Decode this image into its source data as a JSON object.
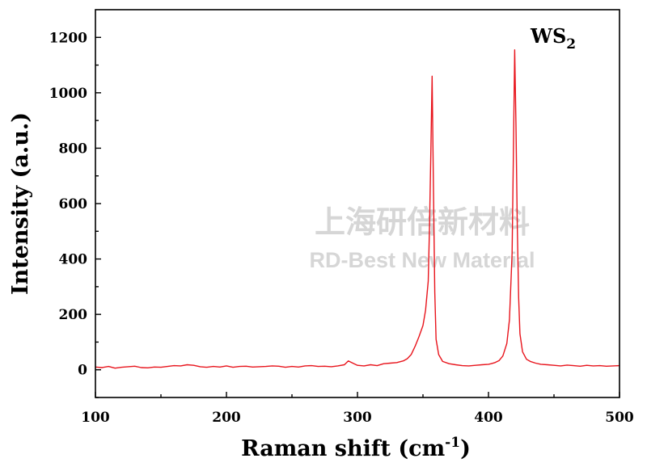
{
  "chart_data": {
    "type": "line",
    "title": "",
    "xlabel": "Raman shift (cm",
    "xlabel_superscript": "-1",
    "xlabel_suffix": ")",
    "ylabel": "Intensity (a.u.)",
    "annotation": {
      "main": "WS",
      "subscript": "2"
    },
    "xlim": [
      100,
      500
    ],
    "ylim": [
      -100,
      1300
    ],
    "x_ticks": [
      100,
      200,
      300,
      400,
      500
    ],
    "y_ticks": [
      0,
      200,
      400,
      600,
      800,
      1000,
      1200
    ],
    "grid": false,
    "series": [
      {
        "color": "#e8141c",
        "x": [
          100,
          105,
          110,
          115,
          120,
          125,
          130,
          135,
          140,
          145,
          150,
          155,
          160,
          165,
          170,
          175,
          180,
          185,
          190,
          195,
          200,
          205,
          210,
          215,
          220,
          225,
          230,
          235,
          240,
          245,
          250,
          255,
          260,
          265,
          270,
          275,
          280,
          285,
          290,
          293,
          296,
          300,
          305,
          310,
          315,
          320,
          325,
          330,
          335,
          338,
          341,
          344,
          347,
          350,
          352,
          354,
          355,
          356,
          357,
          358,
          359,
          360,
          362,
          365,
          370,
          375,
          380,
          385,
          390,
          395,
          400,
          402,
          405,
          408,
          411,
          414,
          416,
          418,
          419,
          420,
          421,
          422,
          423,
          424,
          426,
          429,
          432,
          436,
          440,
          445,
          450,
          455,
          460,
          465,
          470,
          475,
          480,
          485,
          490,
          495,
          500
        ],
        "y": [
          10,
          8,
          12,
          6,
          9,
          11,
          13,
          8,
          7,
          10,
          9,
          12,
          15,
          14,
          18,
          16,
          11,
          9,
          12,
          10,
          14,
          9,
          12,
          13,
          10,
          11,
          12,
          14,
          13,
          9,
          12,
          10,
          14,
          15,
          12,
          13,
          11,
          14,
          18,
          32,
          25,
          16,
          14,
          18,
          15,
          22,
          24,
          26,
          32,
          40,
          55,
          85,
          120,
          160,
          215,
          320,
          520,
          780,
          1060,
          640,
          280,
          110,
          55,
          30,
          22,
          18,
          15,
          14,
          16,
          18,
          20,
          22,
          26,
          33,
          50,
          95,
          180,
          420,
          780,
          1155,
          880,
          520,
          260,
          130,
          65,
          38,
          30,
          24,
          20,
          18,
          16,
          14,
          17,
          15,
          13,
          16,
          14,
          15,
          13,
          14,
          15
        ]
      }
    ]
  },
  "watermark": {
    "cn": "上海研倍新材料",
    "en": "RD-Best New Material"
  }
}
